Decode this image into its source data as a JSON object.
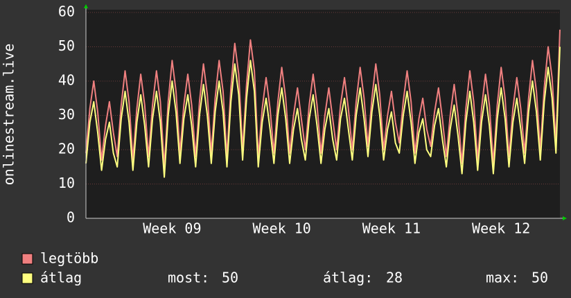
{
  "chart_data": {
    "type": "line",
    "y_label": "onlinestream.live",
    "categories": [
      null,
      null,
      null,
      null,
      null,
      null,
      null,
      null,
      null,
      null,
      null,
      null,
      null,
      null,
      null,
      null,
      null,
      null,
      null,
      null,
      null,
      null,
      "Week 09",
      null,
      null,
      null,
      null,
      null,
      null,
      null,
      null,
      null,
      null,
      null,
      null,
      null,
      null,
      null,
      null,
      null,
      null,
      null,
      null,
      null,
      null,
      null,
      null,
      null,
      null,
      null,
      "Week 10",
      null,
      null,
      null,
      null,
      null,
      null,
      null,
      null,
      null,
      null,
      null,
      null,
      null,
      null,
      null,
      null,
      null,
      null,
      null,
      null,
      null,
      null,
      null,
      null,
      null,
      null,
      null,
      "Week 11",
      null,
      null,
      null,
      null,
      null,
      null,
      null,
      null,
      null,
      null,
      null,
      null,
      null,
      null,
      null,
      null,
      null,
      null,
      null,
      null,
      null,
      null,
      null,
      null,
      null,
      null,
      null,
      "Week 12",
      null,
      null,
      null,
      null,
      null,
      null,
      null,
      null,
      null,
      null,
      null,
      null,
      null,
      null,
      null
    ],
    "series": [
      {
        "name": "legtöbb",
        "color": "#f08080",
        "values": [
          19,
          32,
          40,
          31,
          17,
          27,
          34,
          25,
          18,
          33,
          43,
          34,
          17,
          32,
          42,
          33,
          18,
          33,
          43,
          34,
          15,
          34,
          46,
          37,
          19,
          33,
          42,
          33,
          18,
          34,
          45,
          36,
          19,
          35,
          46,
          37,
          18,
          38,
          51,
          42,
          20,
          39,
          52,
          43,
          18,
          32,
          41,
          32,
          19,
          34,
          44,
          35,
          19,
          30,
          38,
          29,
          20,
          33,
          42,
          33,
          19,
          30,
          38,
          29,
          20,
          33,
          41,
          32,
          20,
          34,
          44,
          35,
          21,
          35,
          45,
          36,
          20,
          30,
          37,
          28,
          22,
          34,
          43,
          34,
          19,
          29,
          35,
          26,
          21,
          31,
          38,
          29,
          18,
          30,
          39,
          30,
          16,
          32,
          43,
          34,
          17,
          32,
          42,
          33,
          16,
          33,
          44,
          35,
          18,
          32,
          41,
          32,
          19,
          35,
          46,
          37,
          20,
          38,
          50,
          41,
          22,
          55
        ]
      },
      {
        "name": "átlag",
        "color": "#ffff80",
        "values": [
          16,
          28,
          34,
          25,
          14,
          23,
          28,
          19,
          15,
          29,
          37,
          28,
          14,
          28,
          36,
          27,
          15,
          29,
          37,
          28,
          12,
          30,
          40,
          31,
          16,
          29,
          36,
          27,
          15,
          30,
          39,
          30,
          16,
          31,
          40,
          31,
          15,
          34,
          45,
          36,
          17,
          35,
          46,
          37,
          15,
          28,
          35,
          26,
          16,
          30,
          38,
          29,
          16,
          26,
          32,
          23,
          17,
          29,
          36,
          27,
          16,
          26,
          32,
          23,
          17,
          29,
          35,
          26,
          17,
          30,
          38,
          29,
          18,
          31,
          39,
          30,
          17,
          26,
          31,
          22,
          19,
          30,
          37,
          28,
          16,
          25,
          29,
          20,
          18,
          27,
          32,
          23,
          15,
          26,
          33,
          24,
          13,
          28,
          37,
          28,
          14,
          28,
          36,
          27,
          13,
          29,
          38,
          29,
          15,
          28,
          35,
          26,
          16,
          31,
          40,
          31,
          17,
          34,
          44,
          35,
          19,
          50
        ]
      }
    ],
    "stats": [
      {
        "label": "most:",
        "value": 50
      },
      {
        "label": "átlag:",
        "value": 28
      },
      {
        "label": "max:",
        "value": 50
      }
    ],
    "ylim": [
      0,
      60
    ],
    "yticks": [
      0,
      10,
      20,
      30,
      40,
      50,
      60
    ],
    "grid": true
  }
}
